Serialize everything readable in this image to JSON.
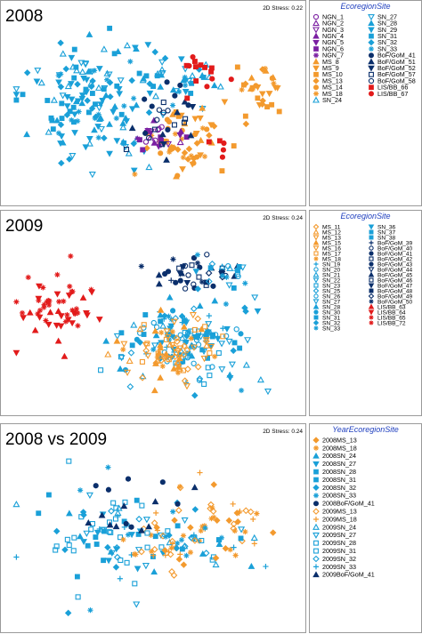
{
  "chart_data": [
    {
      "type": "scatter",
      "title": "2008",
      "stress_label": "2D Stress: 0.22",
      "legend_title": "EcoregionSite",
      "legend": [
        {
          "name": "NGN_1",
          "color": "#7b1fa2",
          "marker": "circle-open"
        },
        {
          "name": "NGN_2",
          "color": "#7b1fa2",
          "marker": "triangle-open"
        },
        {
          "name": "NGN_3",
          "color": "#7b1fa2",
          "marker": "triangle-down-open"
        },
        {
          "name": "NGN_4",
          "color": "#7b1fa2",
          "marker": "triangle"
        },
        {
          "name": "NGN_5",
          "color": "#7b1fa2",
          "marker": "triangle-down"
        },
        {
          "name": "NGN_6",
          "color": "#7b1fa2",
          "marker": "square"
        },
        {
          "name": "NGN_7",
          "color": "#7b1fa2",
          "marker": "asterisk"
        },
        {
          "name": "MS_8",
          "color": "#f39a2e",
          "marker": "triangle"
        },
        {
          "name": "MS_9",
          "color": "#f39a2e",
          "marker": "triangle-down"
        },
        {
          "name": "MS_10",
          "color": "#f39a2e",
          "marker": "square"
        },
        {
          "name": "MS_13",
          "color": "#f39a2e",
          "marker": "diamond"
        },
        {
          "name": "MS_14",
          "color": "#f39a2e",
          "marker": "circle"
        },
        {
          "name": "MS_18",
          "color": "#f39a2e",
          "marker": "asterisk"
        },
        {
          "name": "SN_24",
          "color": "#1aa0d8",
          "marker": "triangle-open"
        },
        {
          "name": "SN_27",
          "color": "#1aa0d8",
          "marker": "triangle-down-open"
        },
        {
          "name": "SN_28",
          "color": "#1aa0d8",
          "marker": "triangle"
        },
        {
          "name": "SN_29",
          "color": "#1aa0d8",
          "marker": "triangle-down"
        },
        {
          "name": "SN_31",
          "color": "#1aa0d8",
          "marker": "square"
        },
        {
          "name": "SN_32",
          "color": "#1aa0d8",
          "marker": "diamond"
        },
        {
          "name": "SN_33",
          "color": "#1aa0d8",
          "marker": "asterisk"
        },
        {
          "name": "BoF/GoM_41",
          "color": "#0b2f6b",
          "marker": "circle"
        },
        {
          "name": "BoF/GoM_51",
          "color": "#0b2f6b",
          "marker": "triangle"
        },
        {
          "name": "BoF/GoM_52",
          "color": "#0b2f6b",
          "marker": "triangle-down"
        },
        {
          "name": "BoF/GoM_57",
          "color": "#0b2f6b",
          "marker": "square-open"
        },
        {
          "name": "BoF/GoM_58",
          "color": "#0b2f6b",
          "marker": "circle-open"
        },
        {
          "name": "LIS/BB_66",
          "color": "#e21b1b",
          "marker": "square"
        },
        {
          "name": "LIS/BB_67",
          "color": "#e21b1b",
          "marker": "circle"
        }
      ],
      "clusters": [
        {
          "color": "#1aa0d8",
          "cx": 0.27,
          "cy": 0.45,
          "sx": 0.12,
          "sy": 0.17,
          "n": 150
        },
        {
          "color": "#1aa0d8",
          "cx": 0.55,
          "cy": 0.3,
          "sx": 0.09,
          "sy": 0.08,
          "n": 40
        },
        {
          "color": "#f39a2e",
          "cx": 0.62,
          "cy": 0.68,
          "sx": 0.08,
          "sy": 0.1,
          "n": 55
        },
        {
          "color": "#f39a2e",
          "cx": 0.88,
          "cy": 0.38,
          "sx": 0.05,
          "sy": 0.08,
          "n": 30
        },
        {
          "color": "#7b1fa2",
          "cx": 0.52,
          "cy": 0.65,
          "sx": 0.04,
          "sy": 0.06,
          "n": 24
        },
        {
          "color": "#0b2f6b",
          "cx": 0.56,
          "cy": 0.55,
          "sx": 0.06,
          "sy": 0.1,
          "n": 28
        },
        {
          "color": "#e21b1b",
          "cx": 0.68,
          "cy": 0.3,
          "sx": 0.06,
          "sy": 0.06,
          "n": 14
        },
        {
          "color": "#e21b1b",
          "cx": 0.73,
          "cy": 0.72,
          "sx": 0.03,
          "sy": 0.04,
          "n": 5
        }
      ]
    },
    {
      "type": "scatter",
      "title": "2009",
      "stress_label": "2D Stress: 0.24",
      "legend_title": "EcoregionSite",
      "legend": [
        {
          "name": "MS_11",
          "color": "#f39a2e",
          "marker": "diamond-open"
        },
        {
          "name": "MS_12",
          "color": "#f39a2e",
          "marker": "triangle-open"
        },
        {
          "name": "MS_13",
          "color": "#f39a2e",
          "marker": "triangle-down-open"
        },
        {
          "name": "MS_15",
          "color": "#f39a2e",
          "marker": "triangle"
        },
        {
          "name": "MS_16",
          "color": "#f39a2e",
          "marker": "triangle-down-open"
        },
        {
          "name": "MS_17",
          "color": "#f39a2e",
          "marker": "square-open"
        },
        {
          "name": "MS_18",
          "color": "#f39a2e",
          "marker": "asterisk"
        },
        {
          "name": "SN_19",
          "color": "#1aa0d8",
          "marker": "plus"
        },
        {
          "name": "SN_20",
          "color": "#1aa0d8",
          "marker": "circle-open"
        },
        {
          "name": "SN_21",
          "color": "#1aa0d8",
          "marker": "triangle-open"
        },
        {
          "name": "SN_22",
          "color": "#1aa0d8",
          "marker": "triangle-down-open"
        },
        {
          "name": "SN_23",
          "color": "#1aa0d8",
          "marker": "square-open"
        },
        {
          "name": "SN_25",
          "color": "#1aa0d8",
          "marker": "diamond-open"
        },
        {
          "name": "SN_26",
          "color": "#1aa0d8",
          "marker": "circle-open"
        },
        {
          "name": "SN_27",
          "color": "#1aa0d8",
          "marker": "triangle-down-open"
        },
        {
          "name": "SN_28",
          "color": "#1aa0d8",
          "marker": "triangle"
        },
        {
          "name": "SN_30",
          "color": "#1aa0d8",
          "marker": "circle"
        },
        {
          "name": "SN_31",
          "color": "#1aa0d8",
          "marker": "square"
        },
        {
          "name": "SN_32",
          "color": "#1aa0d8",
          "marker": "diamond"
        },
        {
          "name": "SN_33",
          "color": "#1aa0d8",
          "marker": "asterisk"
        },
        {
          "name": "SN_36",
          "color": "#1aa0d8",
          "marker": "triangle-down"
        },
        {
          "name": "SN_37",
          "color": "#1aa0d8",
          "marker": "square"
        },
        {
          "name": "SN_38",
          "color": "#1aa0d8",
          "marker": "square"
        },
        {
          "name": "BoF/GoM_39",
          "color": "#0b2f6b",
          "marker": "plus"
        },
        {
          "name": "BoF/GoM_40",
          "color": "#0b2f6b",
          "marker": "circle-open"
        },
        {
          "name": "BoF/GoM_41",
          "color": "#0b2f6b",
          "marker": "circle"
        },
        {
          "name": "BoF/GoM_42",
          "color": "#0b2f6b",
          "marker": "square-open"
        },
        {
          "name": "BoF/GoM_43",
          "color": "#0b2f6b",
          "marker": "circle"
        },
        {
          "name": "BoF/GoM_44",
          "color": "#0b2f6b",
          "marker": "triangle-down-open"
        },
        {
          "name": "BoF/GoM_45",
          "color": "#0b2f6b",
          "marker": "triangle"
        },
        {
          "name": "BoF/GoM_46",
          "color": "#0b2f6b",
          "marker": "square-open"
        },
        {
          "name": "BoF/GoM_47",
          "color": "#0b2f6b",
          "marker": "triangle-down"
        },
        {
          "name": "BoF/GoM_48",
          "color": "#0b2f6b",
          "marker": "square"
        },
        {
          "name": "BoF/GoM_49",
          "color": "#0b2f6b",
          "marker": "diamond-open"
        },
        {
          "name": "BoF/GoM_50",
          "color": "#0b2f6b",
          "marker": "asterisk"
        },
        {
          "name": "LIS/BB_63",
          "color": "#e21b1b",
          "marker": "triangle"
        },
        {
          "name": "LIS/BB_64",
          "color": "#e21b1b",
          "marker": "triangle-down"
        },
        {
          "name": "LIS/BB_65",
          "color": "#e21b1b",
          "marker": "asterisk"
        },
        {
          "name": "LIS/BB_72",
          "color": "#e21b1b",
          "marker": "asterisk"
        }
      ],
      "clusters": [
        {
          "color": "#e21b1b",
          "cx": 0.17,
          "cy": 0.42,
          "sx": 0.07,
          "sy": 0.1,
          "n": 55
        },
        {
          "color": "#1aa0d8",
          "cx": 0.62,
          "cy": 0.62,
          "sx": 0.11,
          "sy": 0.12,
          "n": 140
        },
        {
          "color": "#f39a2e",
          "cx": 0.57,
          "cy": 0.7,
          "sx": 0.09,
          "sy": 0.09,
          "n": 80
        },
        {
          "color": "#0b2f6b",
          "cx": 0.65,
          "cy": 0.22,
          "sx": 0.07,
          "sy": 0.06,
          "n": 40
        },
        {
          "color": "#1aa0d8",
          "cx": 0.73,
          "cy": 0.22,
          "sx": 0.06,
          "sy": 0.05,
          "n": 20
        }
      ]
    },
    {
      "type": "scatter",
      "title": "2008 vs 2009",
      "stress_label": "2D Stress: 0.24",
      "legend_title": "YearEcoregionSite",
      "legend": [
        {
          "name": "2008MS_13",
          "color": "#f39a2e",
          "marker": "diamond"
        },
        {
          "name": "2008MS_18",
          "color": "#f39a2e",
          "marker": "asterisk"
        },
        {
          "name": "2008SN_24",
          "color": "#1aa0d8",
          "marker": "triangle"
        },
        {
          "name": "2008SN_27",
          "color": "#1aa0d8",
          "marker": "triangle-down"
        },
        {
          "name": "2008SN_28",
          "color": "#1aa0d8",
          "marker": "square"
        },
        {
          "name": "2008SN_31",
          "color": "#1aa0d8",
          "marker": "square"
        },
        {
          "name": "2008SN_32",
          "color": "#1aa0d8",
          "marker": "diamond"
        },
        {
          "name": "2008SN_33",
          "color": "#1aa0d8",
          "marker": "asterisk"
        },
        {
          "name": "2008BoF/GoM_41",
          "color": "#0b2f6b",
          "marker": "circle"
        },
        {
          "name": "2009MS_13",
          "color": "#f39a2e",
          "marker": "diamond-open"
        },
        {
          "name": "2009MS_18",
          "color": "#f39a2e",
          "marker": "plus"
        },
        {
          "name": "2009SN_24",
          "color": "#1aa0d8",
          "marker": "triangle-open"
        },
        {
          "name": "2009SN_27",
          "color": "#1aa0d8",
          "marker": "triangle-down-open"
        },
        {
          "name": "2009SN_28",
          "color": "#1aa0d8",
          "marker": "square-open"
        },
        {
          "name": "2009SN_31",
          "color": "#1aa0d8",
          "marker": "square-open"
        },
        {
          "name": "2009SN_32",
          "color": "#1aa0d8",
          "marker": "diamond-open"
        },
        {
          "name": "2009SN_33",
          "color": "#1aa0d8",
          "marker": "plus"
        },
        {
          "name": "2009BoF/GoM_41",
          "color": "#0b2f6b",
          "marker": "triangle"
        }
      ],
      "clusters": [
        {
          "color": "#1aa0d8",
          "cx": 0.35,
          "cy": 0.5,
          "sx": 0.1,
          "sy": 0.16,
          "n": 80
        },
        {
          "color": "#f39a2e",
          "cx": 0.68,
          "cy": 0.4,
          "sx": 0.12,
          "sy": 0.1,
          "n": 50
        },
        {
          "color": "#1aa0d8",
          "cx": 0.62,
          "cy": 0.55,
          "sx": 0.12,
          "sy": 0.07,
          "n": 45
        },
        {
          "color": "#0b2f6b",
          "cx": 0.4,
          "cy": 0.35,
          "sx": 0.1,
          "sy": 0.12,
          "n": 16
        },
        {
          "color": "#f39a2e",
          "cx": 0.55,
          "cy": 0.6,
          "sx": 0.08,
          "sy": 0.06,
          "n": 20
        }
      ]
    }
  ]
}
